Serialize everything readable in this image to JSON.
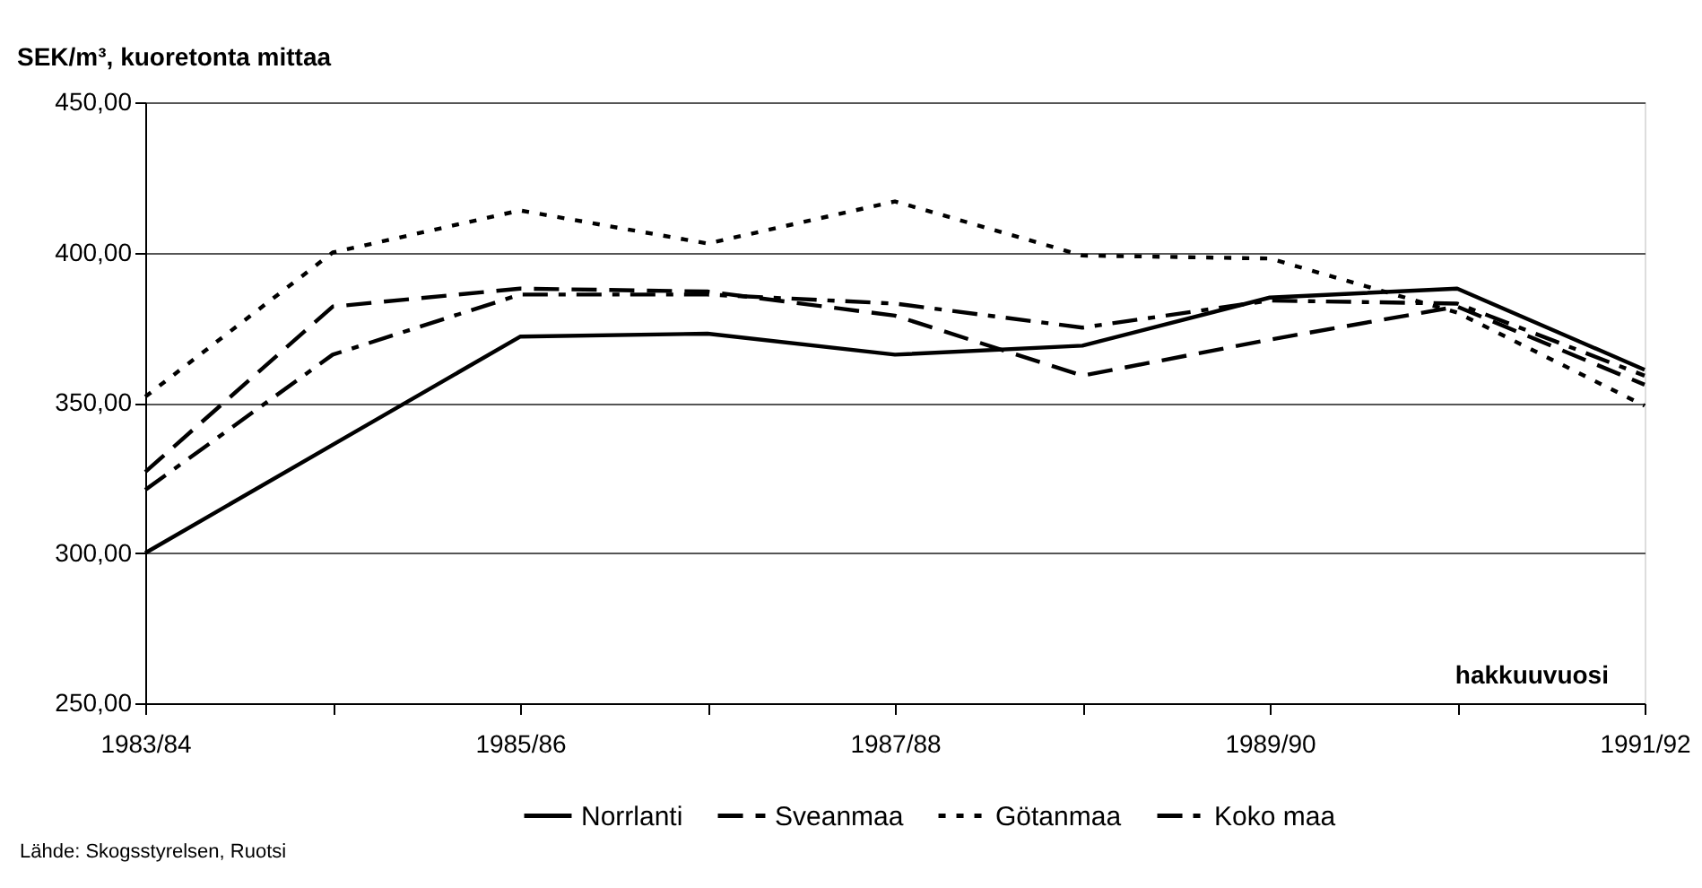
{
  "chart_data": {
    "type": "line",
    "ylabel": "SEK/m³, kuoretonta mittaa",
    "xlabel": "hakkuuvuosi",
    "categories": [
      "1983/84",
      null,
      "1985/86",
      null,
      "1987/88",
      null,
      "1989/90",
      null,
      "1991/92"
    ],
    "series": [
      {
        "name": "Norrlanti",
        "color": "#000000",
        "line_style": "solid",
        "values": [
          300,
          336,
          372,
          373,
          366,
          369,
          385,
          388,
          361
        ]
      },
      {
        "name": "Sveanmaa",
        "color": "#000000",
        "line_style": "dashed",
        "values": [
          327,
          382,
          388,
          387,
          379,
          359,
          371,
          382,
          356
        ]
      },
      {
        "name": "Götanmaa",
        "color": "#000000",
        "line_style": "dotted",
        "values": [
          352,
          400,
          414,
          403,
          417,
          399,
          398,
          380,
          349
        ]
      },
      {
        "name": "Koko maa",
        "color": "#000000",
        "line_style": "dashdot",
        "values": [
          321,
          366,
          386,
          386,
          383,
          375,
          384,
          383,
          359
        ]
      }
    ],
    "ylim": [
      250,
      450
    ],
    "yticks": [
      {
        "value": 250,
        "label": "250,00"
      },
      {
        "value": 300,
        "label": "300,00"
      },
      {
        "value": 350,
        "label": "350,00"
      },
      {
        "value": 400,
        "label": "400,00"
      },
      {
        "value": 450,
        "label": "450,00"
      }
    ],
    "grid": "y",
    "legend": "bottom",
    "annotations": [
      "Lähde: Skogsstyrelsen, Ruotsi"
    ]
  }
}
